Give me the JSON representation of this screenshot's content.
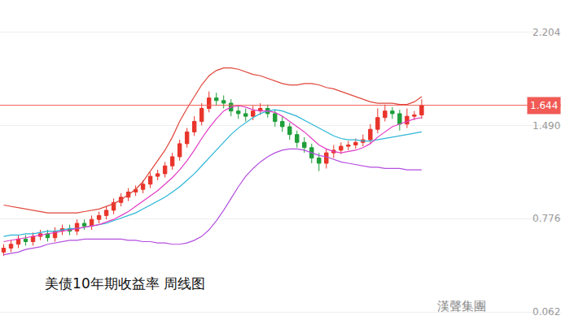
{
  "chart_data": {
    "type": "candlestick",
    "title": "美债10年期收益率 周线图",
    "watermark": "漢聲集團",
    "x": [
      0,
      1,
      2,
      3,
      4,
      5,
      6,
      7,
      8,
      9,
      10,
      11,
      12,
      13,
      14,
      15,
      16,
      17,
      18,
      19,
      20,
      21,
      22,
      23,
      24,
      25,
      26,
      27,
      28,
      29,
      30,
      31,
      32,
      33,
      34,
      35,
      36,
      37,
      38,
      39,
      40,
      41,
      42,
      43,
      44,
      45,
      46,
      47,
      48,
      49,
      50,
      51,
      52,
      53,
      54,
      55,
      56,
      57
    ],
    "open": [
      0.52,
      0.55,
      0.58,
      0.62,
      0.6,
      0.64,
      0.66,
      0.63,
      0.68,
      0.7,
      0.68,
      0.74,
      0.72,
      0.77,
      0.8,
      0.84,
      0.9,
      0.94,
      0.98,
      1.0,
      1.04,
      1.1,
      1.12,
      1.18,
      1.25,
      1.35,
      1.44,
      1.52,
      1.62,
      1.7,
      1.68,
      1.66,
      1.6,
      1.58,
      1.56,
      1.6,
      1.62,
      1.58,
      1.52,
      1.48,
      1.42,
      1.36,
      1.32,
      1.24,
      1.2,
      1.28,
      1.3,
      1.33,
      1.34,
      1.36,
      1.38,
      1.46,
      1.55,
      1.6,
      1.58,
      1.5,
      1.56,
      1.57
    ],
    "high": [
      0.58,
      0.61,
      0.65,
      0.65,
      0.67,
      0.69,
      0.69,
      0.71,
      0.73,
      0.73,
      0.77,
      0.77,
      0.8,
      0.83,
      0.87,
      0.93,
      0.97,
      1.01,
      1.03,
      1.07,
      1.13,
      1.15,
      1.21,
      1.28,
      1.38,
      1.47,
      1.56,
      1.66,
      1.75,
      1.74,
      1.72,
      1.69,
      1.64,
      1.62,
      1.64,
      1.66,
      1.65,
      1.61,
      1.56,
      1.51,
      1.45,
      1.4,
      1.35,
      1.28,
      1.31,
      1.34,
      1.36,
      1.37,
      1.39,
      1.42,
      1.5,
      1.62,
      1.65,
      1.63,
      1.61,
      1.62,
      1.6,
      1.69
    ],
    "low": [
      0.49,
      0.52,
      0.55,
      0.57,
      0.57,
      0.61,
      0.6,
      0.6,
      0.65,
      0.65,
      0.65,
      0.69,
      0.69,
      0.74,
      0.77,
      0.81,
      0.87,
      0.91,
      0.95,
      0.97,
      1.01,
      1.07,
      1.09,
      1.15,
      1.22,
      1.32,
      1.41,
      1.49,
      1.59,
      1.64,
      1.62,
      1.56,
      1.54,
      1.52,
      1.53,
      1.57,
      1.55,
      1.48,
      1.44,
      1.38,
      1.32,
      1.28,
      1.2,
      1.14,
      1.16,
      1.24,
      1.27,
      1.3,
      1.31,
      1.33,
      1.35,
      1.43,
      1.52,
      1.54,
      1.45,
      1.47,
      1.53,
      1.54
    ],
    "close": [
      0.55,
      0.58,
      0.62,
      0.6,
      0.64,
      0.66,
      0.63,
      0.68,
      0.7,
      0.68,
      0.74,
      0.72,
      0.77,
      0.8,
      0.84,
      0.9,
      0.94,
      0.98,
      1.0,
      1.04,
      1.1,
      1.12,
      1.18,
      1.25,
      1.35,
      1.44,
      1.52,
      1.62,
      1.7,
      1.68,
      1.66,
      1.6,
      1.58,
      1.56,
      1.6,
      1.62,
      1.58,
      1.52,
      1.48,
      1.42,
      1.36,
      1.32,
      1.24,
      1.2,
      1.28,
      1.3,
      1.33,
      1.34,
      1.36,
      1.38,
      1.46,
      1.55,
      1.6,
      1.58,
      1.5,
      1.56,
      1.57,
      1.644
    ],
    "color": {
      "increasing": "#e8342a",
      "decreasing": "#1f9e3a"
    },
    "series": [
      {
        "type": "line",
        "color": "#e0463a",
        "values": [
          0.88,
          0.87,
          0.86,
          0.85,
          0.84,
          0.83,
          0.82,
          0.82,
          0.82,
          0.82,
          0.82,
          0.83,
          0.84,
          0.85,
          0.87,
          0.89,
          0.92,
          0.96,
          1.0,
          1.06,
          1.14,
          1.22,
          1.3,
          1.4,
          1.52,
          1.62,
          1.71,
          1.8,
          1.87,
          1.91,
          1.93,
          1.93,
          1.92,
          1.9,
          1.88,
          1.87,
          1.85,
          1.83,
          1.81,
          1.8,
          1.8,
          1.81,
          1.81,
          1.8,
          1.78,
          1.77,
          1.75,
          1.73,
          1.71,
          1.69,
          1.67,
          1.66,
          1.66,
          1.66,
          1.65,
          1.65,
          1.67,
          1.71
        ]
      },
      {
        "type": "line",
        "color": "#b44fe0",
        "values": [
          0.5,
          0.51,
          0.52,
          0.54,
          0.55,
          0.56,
          0.58,
          0.59,
          0.6,
          0.61,
          0.61,
          0.62,
          0.62,
          0.62,
          0.62,
          0.62,
          0.62,
          0.61,
          0.61,
          0.6,
          0.6,
          0.59,
          0.59,
          0.58,
          0.58,
          0.59,
          0.61,
          0.64,
          0.69,
          0.76,
          0.84,
          0.93,
          1.02,
          1.1,
          1.16,
          1.21,
          1.25,
          1.28,
          1.3,
          1.31,
          1.31,
          1.3,
          1.28,
          1.26,
          1.25,
          1.23,
          1.21,
          1.2,
          1.19,
          1.18,
          1.17,
          1.17,
          1.16,
          1.16,
          1.16,
          1.15,
          1.15,
          1.15
        ]
      },
      {
        "type": "line",
        "color": "#2bb5d8",
        "values": [
          0.64,
          0.65,
          0.65,
          0.66,
          0.66,
          0.67,
          0.68,
          0.68,
          0.69,
          0.7,
          0.7,
          0.71,
          0.72,
          0.73,
          0.74,
          0.76,
          0.78,
          0.8,
          0.82,
          0.85,
          0.88,
          0.91,
          0.94,
          0.98,
          1.02,
          1.07,
          1.12,
          1.18,
          1.24,
          1.3,
          1.36,
          1.42,
          1.47,
          1.51,
          1.55,
          1.58,
          1.6,
          1.61,
          1.6,
          1.58,
          1.56,
          1.53,
          1.5,
          1.47,
          1.44,
          1.41,
          1.39,
          1.38,
          1.38,
          1.37,
          1.37,
          1.38,
          1.39,
          1.4,
          1.41,
          1.42,
          1.43,
          1.44
        ]
      },
      {
        "type": "line",
        "color": "#e23cc8",
        "values": [
          0.6,
          0.61,
          0.62,
          0.63,
          0.64,
          0.65,
          0.66,
          0.67,
          0.68,
          0.69,
          0.7,
          0.71,
          0.72,
          0.73,
          0.75,
          0.77,
          0.8,
          0.83,
          0.87,
          0.91,
          0.95,
          0.99,
          1.04,
          1.09,
          1.15,
          1.22,
          1.3,
          1.39,
          1.47,
          1.54,
          1.6,
          1.63,
          1.64,
          1.63,
          1.61,
          1.6,
          1.6,
          1.59,
          1.56,
          1.52,
          1.48,
          1.44,
          1.39,
          1.34,
          1.31,
          1.29,
          1.28,
          1.29,
          1.3,
          1.32,
          1.35,
          1.4,
          1.44,
          1.48,
          1.5,
          1.52,
          1.54,
          1.55
        ]
      }
    ],
    "price_line": {
      "value": 1.644,
      "color": "#f15a55"
    },
    "xlim": [
      -0.5,
      76
    ],
    "xticks": [],
    "ylim": [
      0,
      2.45
    ],
    "yticks": [
      2.204,
      {
        "value": 1.49,
        "label": "1.490"
      },
      0.776,
      0.062
    ],
    "grid": true,
    "tick_labels": "y"
  }
}
